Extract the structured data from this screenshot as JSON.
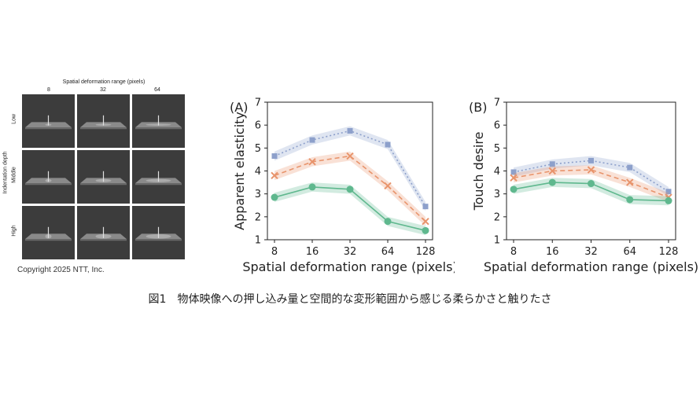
{
  "stimuli": {
    "title": "Spatial deformation range (pixels)",
    "col_labels": [
      "8",
      "32",
      "64"
    ],
    "row_axis": "Indentation depth",
    "row_labels": [
      "Low",
      "Middle",
      "High"
    ]
  },
  "copyright": "Copyright 2025 NTT, Inc.",
  "caption": "図1　物体映像への押し込み量と空間的な変形範囲から感じる柔らかさと触りたさ",
  "chart_data": [
    {
      "type": "line",
      "panel_label": "(A)",
      "xlabel": "Spatial deformation range (pixels)",
      "ylabel": "Apparent elasticity",
      "x": [
        "8",
        "16",
        "32",
        "64",
        "128"
      ],
      "ylim": [
        1,
        7
      ],
      "yticks": [
        "1",
        "2",
        "3",
        "4",
        "5",
        "6",
        "7"
      ],
      "series": [
        {
          "values": [
            4.65,
            5.35,
            5.75,
            5.15,
            2.45
          ],
          "color": "#8da0cb",
          "marker": "square",
          "dash": "dotted"
        },
        {
          "values": [
            3.8,
            4.4,
            4.65,
            3.35,
            1.8
          ],
          "color": "#e8946c",
          "marker": "x",
          "dash": "dashed"
        },
        {
          "values": [
            2.85,
            3.3,
            3.2,
            1.8,
            1.4
          ],
          "color": "#5fb88e",
          "marker": "circle",
          "dash": "solid"
        }
      ]
    },
    {
      "type": "line",
      "panel_label": "(B)",
      "xlabel": "Spatial deformation range (pixels)",
      "ylabel": "Touch desire",
      "x": [
        "8",
        "16",
        "32",
        "64",
        "128"
      ],
      "ylim": [
        1,
        7
      ],
      "yticks": [
        "1",
        "2",
        "3",
        "4",
        "5",
        "6",
        "7"
      ],
      "series": [
        {
          "values": [
            3.95,
            4.3,
            4.45,
            4.15,
            3.1
          ],
          "color": "#8da0cb",
          "marker": "square",
          "dash": "dotted"
        },
        {
          "values": [
            3.7,
            4.0,
            4.05,
            3.5,
            2.85
          ],
          "color": "#e8946c",
          "marker": "x",
          "dash": "dashed"
        },
        {
          "values": [
            3.2,
            3.5,
            3.45,
            2.75,
            2.7
          ],
          "color": "#5fb88e",
          "marker": "circle",
          "dash": "solid"
        }
      ]
    }
  ]
}
